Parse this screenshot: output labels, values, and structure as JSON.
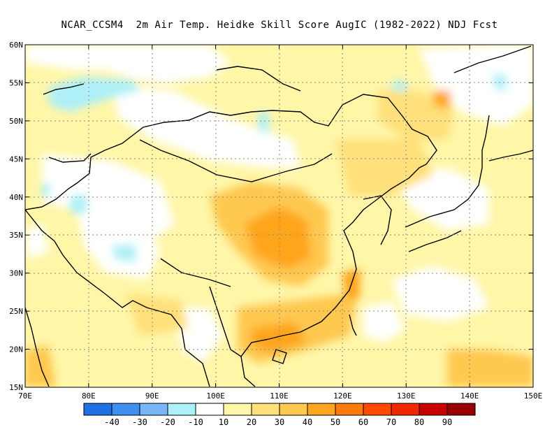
{
  "title": "NCAR_CCSM4  2m Air Temp. Heidke Skill Score AugIC (1982-2022) NDJ Fcst",
  "map": {
    "lon_range": [
      70,
      150
    ],
    "lat_range": [
      15,
      60
    ],
    "lon_ticks": [
      "70E",
      "80E",
      "90E",
      "100E",
      "110E",
      "120E",
      "130E",
      "140E",
      "150E"
    ],
    "lat_ticks": [
      "15N",
      "20N",
      "25N",
      "30N",
      "35N",
      "40N",
      "45N",
      "50N",
      "55N",
      "60N"
    ],
    "grid": "dotted"
  },
  "colorbar": {
    "colors": [
      "#1f6fe6",
      "#3f8ef2",
      "#78b6f7",
      "#aef0f7",
      "#ffffff",
      "#fff6a8",
      "#ffe07a",
      "#ffc850",
      "#ffa51e",
      "#ff7a0a",
      "#ff4a00",
      "#f02800",
      "#c80000",
      "#9a0000"
    ],
    "labels": [
      "-40",
      "-30",
      "-20",
      "-10",
      "10",
      "20",
      "30",
      "40",
      "50",
      "60",
      "70",
      "80",
      "90"
    ]
  }
}
